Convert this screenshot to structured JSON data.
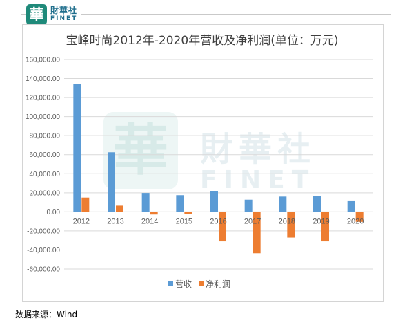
{
  "brand": {
    "mark": "華",
    "name_cn": "財華社",
    "name_en": "FINET"
  },
  "watermark": {
    "mark": "華",
    "name_cn": "財華社",
    "name_en": "FINET"
  },
  "source": "数据来源：Wind",
  "colors": {
    "revenue": "#5B9BD5",
    "profit": "#ED7D31",
    "grid": "#d9d9d9",
    "axis_text": "#595959"
  },
  "chart_data": {
    "type": "bar",
    "title": "宝峰时尚2012年-2020年营收及净利润(单位：万元)",
    "categories": [
      "2012",
      "2013",
      "2014",
      "2015",
      "2016",
      "2017",
      "2018",
      "2019",
      "2020"
    ],
    "series": [
      {
        "name": "营收",
        "values": [
          134500,
          62500,
          19800,
          17500,
          22000,
          12800,
          16000,
          16800,
          11200
        ]
      },
      {
        "name": "净利润",
        "values": [
          15000,
          6500,
          -2800,
          -2200,
          -31000,
          -43500,
          -27000,
          -31000,
          -10500
        ]
      }
    ],
    "ylim": [
      -60000,
      160000
    ],
    "y_ticks": [
      "-60,000.00",
      "-40,000.00",
      "-20,000.00",
      "0.00",
      "20,000.00",
      "40,000.00",
      "60,000.00",
      "80,000.00",
      "100,000.00",
      "120,000.00",
      "140,000.00",
      "160,000.00"
    ],
    "legend": "bottom",
    "grid": true
  }
}
